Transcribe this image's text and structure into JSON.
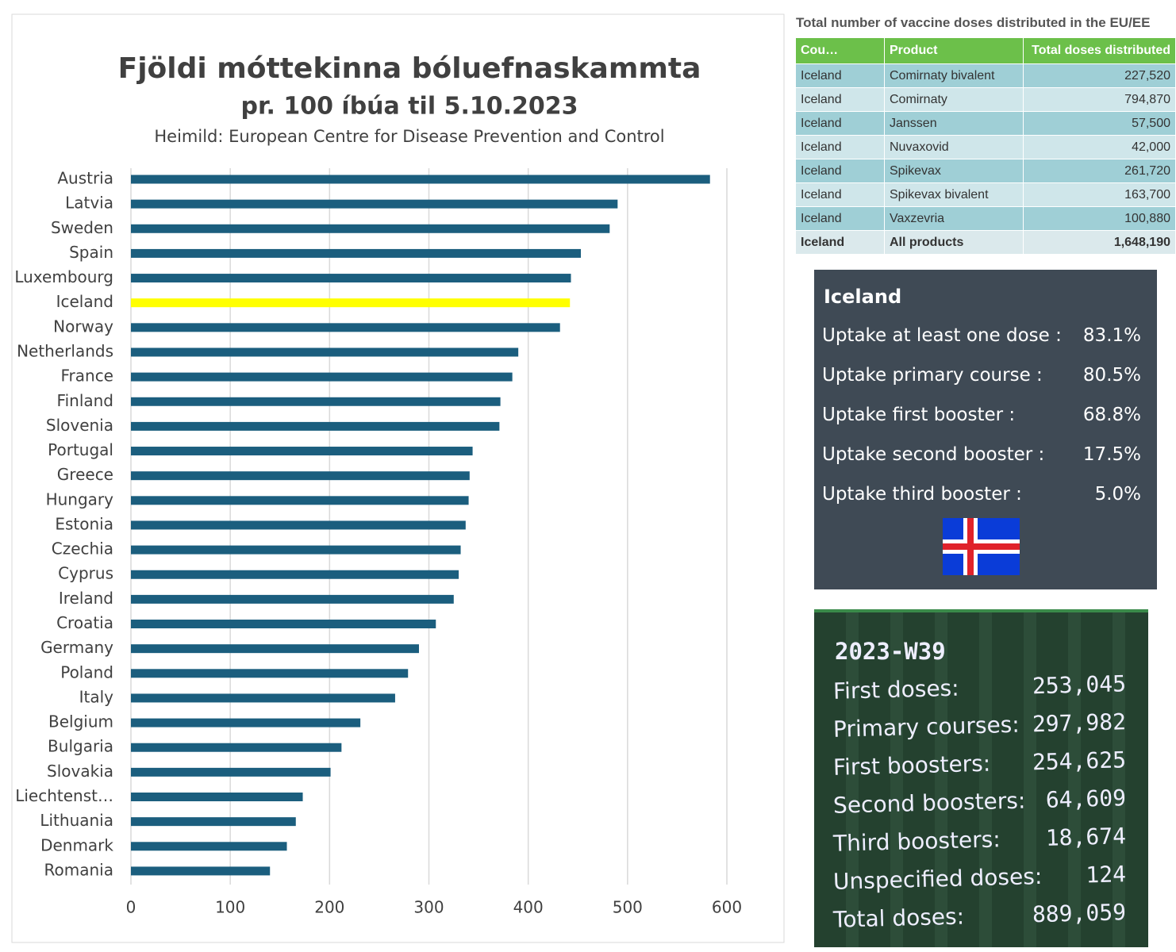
{
  "chart_data": {
    "type": "barh",
    "title": "Fjöldi móttekinna bóluefnaskammta",
    "subtitle": "pr. 100 íbúa til 5.10.2023",
    "source": "Heimild: European Centre for Disease Prevention and Control",
    "categories": [
      "Austria",
      "Latvia",
      "Sweden",
      "Spain",
      "Luxembourg",
      "Iceland",
      "Norway",
      "Netherlands",
      "France",
      "Finland",
      "Slovenia",
      "Portugal",
      "Greece",
      "Hungary",
      "Estonia",
      "Czechia",
      "Cyprus",
      "Ireland",
      "Croatia",
      "Germany",
      "Poland",
      "Italy",
      "Belgium",
      "Bulgaria",
      "Slovakia",
      "Liechtenst…",
      "Lithuania",
      "Denmark",
      "Romania"
    ],
    "values": [
      583,
      490,
      482,
      453,
      443,
      442,
      432,
      390,
      384,
      372,
      371,
      344,
      341,
      340,
      337,
      332,
      330,
      325,
      307,
      290,
      279,
      266,
      231,
      212,
      201,
      173,
      166,
      157,
      140
    ],
    "colors": [
      "#1b5e7e",
      "#1b5e7e",
      "#1b5e7e",
      "#1b5e7e",
      "#1b5e7e",
      "#ffff00",
      "#1b5e7e",
      "#1b5e7e",
      "#1b5e7e",
      "#1b5e7e",
      "#1b5e7e",
      "#1b5e7e",
      "#1b5e7e",
      "#1b5e7e",
      "#1b5e7e",
      "#1b5e7e",
      "#1b5e7e",
      "#1b5e7e",
      "#1b5e7e",
      "#1b5e7e",
      "#1b5e7e",
      "#1b5e7e",
      "#1b5e7e",
      "#1b5e7e",
      "#1b5e7e",
      "#1b5e7e",
      "#1b5e7e",
      "#1b5e7e",
      "#1b5e7e"
    ],
    "xlim": [
      0,
      600
    ],
    "xticks": [
      0,
      100,
      200,
      300,
      400,
      500,
      600
    ],
    "grid": true
  },
  "table": {
    "title": "Total number of vaccine doses distributed in the EU/EE",
    "header": [
      "Cou…",
      "Product",
      "Total doses distributed"
    ],
    "rows": [
      [
        "Iceland",
        "Comirnaty bivalent",
        "227,520"
      ],
      [
        "Iceland",
        "Comirnaty",
        "794,870"
      ],
      [
        "Iceland",
        "Janssen",
        "57,500"
      ],
      [
        "Iceland",
        "Nuvaxovid",
        "42,000"
      ],
      [
        "Iceland",
        "Spikevax",
        "261,720"
      ],
      [
        "Iceland",
        "Spikevax bivalent",
        "163,700"
      ],
      [
        "Iceland",
        "Vaxzevria",
        "100,880"
      ],
      [
        "Iceland",
        "All products",
        "1,648,190"
      ]
    ]
  },
  "uptake_card": {
    "title": "Iceland",
    "rows": [
      [
        "Uptake at least one dose :",
        "83.1%"
      ],
      [
        "Uptake primary course :",
        "80.5%"
      ],
      [
        "Uptake first booster :",
        "68.8%"
      ],
      [
        "Uptake second booster :",
        "17.5%"
      ],
      [
        "Uptake third booster :",
        "5.0%"
      ]
    ]
  },
  "weekly_card": {
    "title": "2023-W39",
    "rows": [
      [
        "First doses:",
        "253,045"
      ],
      [
        "Primary courses:",
        "297,982"
      ],
      [
        "First boosters:",
        "254,625"
      ],
      [
        "Second boosters:",
        "64,609"
      ],
      [
        "Third boosters:",
        "18,674"
      ],
      [
        "Unspecified doses:",
        "124"
      ],
      [
        "Total doses:",
        "889,059"
      ]
    ]
  }
}
